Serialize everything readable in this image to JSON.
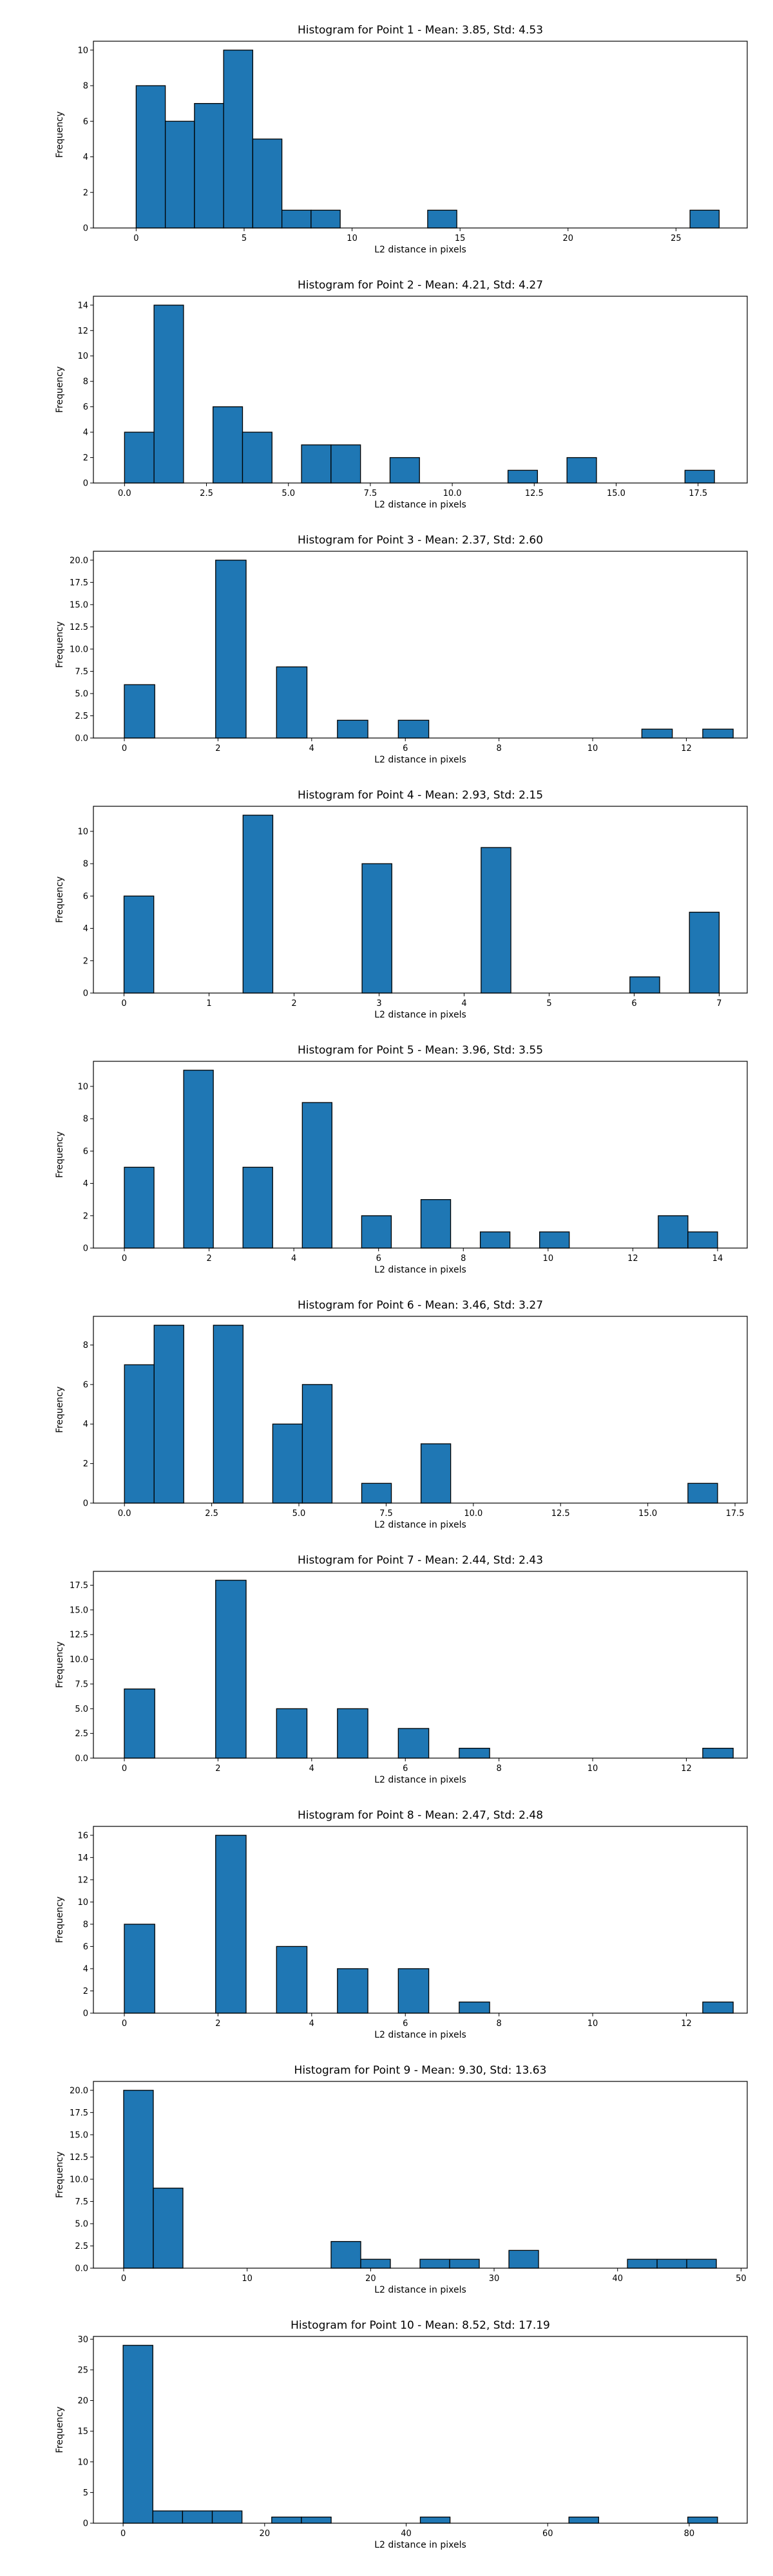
{
  "chart_data": [
    {
      "type": "histogram",
      "title": "Histogram for Point 1 - Mean: 3.85, Std: 4.53",
      "xlabel": "L2 distance in pixels",
      "ylabel": "Frequency",
      "xlim": [
        -1.98,
        28.3
      ],
      "ylim": [
        0,
        10.5
      ],
      "xticks": [
        0,
        5,
        10,
        15,
        20,
        25
      ],
      "xtick_labels": [
        "0",
        "5",
        "10",
        "15",
        "20",
        "25"
      ],
      "yticks": [
        0,
        2,
        4,
        6,
        8,
        10
      ],
      "ytick_labels": [
        "0",
        "2",
        "4",
        "6",
        "8",
        "10"
      ],
      "bin_edges": [
        0,
        1.35,
        2.7,
        4.05,
        5.4,
        6.75,
        8.1,
        9.45,
        10.8,
        12.15,
        13.5,
        14.85,
        16.2,
        17.55,
        18.9,
        20.25,
        21.6,
        22.95,
        24.3,
        25.65,
        27.0
      ],
      "counts": [
        8,
        6,
        7,
        10,
        5,
        1,
        1,
        0,
        0,
        0,
        1,
        0,
        0,
        0,
        0,
        0,
        0,
        0,
        0,
        1
      ]
    },
    {
      "type": "histogram",
      "title": "Histogram for Point 2 - Mean: 4.21, Std: 4.27",
      "xlabel": "L2 distance in pixels",
      "ylabel": "Frequency",
      "xlim": [
        -0.95,
        19.0
      ],
      "ylim": [
        0,
        14.7
      ],
      "xticks": [
        0,
        2.5,
        5,
        7.5,
        10,
        12.5,
        15,
        17.5
      ],
      "xtick_labels": [
        "0.0",
        "2.5",
        "5.0",
        "7.5",
        "10.0",
        "12.5",
        "15.0",
        "17.5"
      ],
      "yticks": [
        0,
        2,
        4,
        6,
        8,
        10,
        12,
        14
      ],
      "ytick_labels": [
        "0",
        "2",
        "4",
        "6",
        "8",
        "10",
        "12",
        "14"
      ],
      "bin_edges": [
        0,
        0.9,
        1.8,
        2.7,
        3.6,
        4.5,
        5.4,
        6.3,
        7.2,
        8.1,
        9.0,
        9.9,
        10.8,
        11.7,
        12.6,
        13.5,
        14.4,
        15.3,
        16.2,
        17.1,
        18.0
      ],
      "counts": [
        4,
        14,
        0,
        6,
        4,
        0,
        3,
        3,
        0,
        2,
        0,
        0,
        0,
        1,
        0,
        2,
        0,
        0,
        0,
        1
      ]
    },
    {
      "type": "histogram",
      "title": "Histogram for Point 3 - Mean: 2.37, Std: 2.60",
      "xlabel": "L2 distance in pixels",
      "ylabel": "Frequency",
      "xlim": [
        -0.66,
        13.3
      ],
      "ylim": [
        0,
        21.0
      ],
      "xticks": [
        0,
        2,
        4,
        6,
        8,
        10,
        12
      ],
      "xtick_labels": [
        "0",
        "2",
        "4",
        "6",
        "8",
        "10",
        "12"
      ],
      "yticks": [
        0,
        2.5,
        5,
        7.5,
        10,
        12.5,
        15,
        17.5,
        20
      ],
      "ytick_labels": [
        "0.0",
        "2.5",
        "5.0",
        "7.5",
        "10.0",
        "12.5",
        "15.0",
        "17.5",
        "20.0"
      ],
      "bin_edges": [
        0,
        0.65,
        1.3,
        1.95,
        2.6,
        3.25,
        3.9,
        4.55,
        5.2,
        5.85,
        6.5,
        7.15,
        7.8,
        8.45,
        9.1,
        9.75,
        10.4,
        11.05,
        11.7,
        12.35,
        13.0
      ],
      "counts": [
        6,
        0,
        0,
        20,
        0,
        8,
        0,
        2,
        0,
        2,
        0,
        0,
        0,
        0,
        0,
        0,
        0,
        1,
        0,
        1
      ]
    },
    {
      "type": "histogram",
      "title": "Histogram for Point 4 - Mean: 2.93, Std: 2.15",
      "xlabel": "L2 distance in pixels",
      "ylabel": "Frequency",
      "xlim": [
        -0.36,
        7.33
      ],
      "ylim": [
        0,
        11.55
      ],
      "xticks": [
        0,
        1,
        2,
        3,
        4,
        5,
        6,
        7
      ],
      "xtick_labels": [
        "0",
        "1",
        "2",
        "3",
        "4",
        "5",
        "6",
        "7"
      ],
      "yticks": [
        0,
        2,
        4,
        6,
        8,
        10
      ],
      "ytick_labels": [
        "0",
        "2",
        "4",
        "6",
        "8",
        "10"
      ],
      "bin_edges": [
        0,
        0.35,
        0.7,
        1.05,
        1.4,
        1.75,
        2.1,
        2.45,
        2.8,
        3.15,
        3.5,
        3.85,
        4.2,
        4.55,
        4.9,
        5.25,
        5.6,
        5.95,
        6.3,
        6.65,
        7.0
      ],
      "counts": [
        6,
        0,
        0,
        0,
        11,
        0,
        0,
        0,
        8,
        0,
        0,
        0,
        9,
        0,
        0,
        0,
        0,
        1,
        0,
        5
      ]
    },
    {
      "type": "histogram",
      "title": "Histogram for Point 5 - Mean: 3.96, Std: 3.55",
      "xlabel": "L2 distance in pixels",
      "ylabel": "Frequency",
      "xlim": [
        -0.73,
        14.7
      ],
      "ylim": [
        0,
        11.55
      ],
      "xticks": [
        0,
        2,
        4,
        6,
        8,
        10,
        12,
        14
      ],
      "xtick_labels": [
        "0",
        "2",
        "4",
        "6",
        "8",
        "10",
        "12",
        "14"
      ],
      "yticks": [
        0,
        2,
        4,
        6,
        8,
        10
      ],
      "ytick_labels": [
        "0",
        "2",
        "4",
        "6",
        "8",
        "10"
      ],
      "bin_edges": [
        0,
        0.7,
        1.4,
        2.1,
        2.8,
        3.5,
        4.2,
        4.9,
        5.6,
        6.3,
        7.0,
        7.7,
        8.4,
        9.1,
        9.8,
        10.5,
        11.2,
        11.9,
        12.6,
        13.3,
        14.0
      ],
      "counts": [
        5,
        0,
        11,
        0,
        5,
        0,
        9,
        0,
        2,
        0,
        3,
        0,
        1,
        0,
        1,
        0,
        0,
        0,
        2,
        1
      ]
    },
    {
      "type": "histogram",
      "title": "Histogram for Point 6 - Mean: 3.46, Std: 3.27",
      "xlabel": "L2 distance in pixels",
      "ylabel": "Frequency",
      "xlim": [
        -0.89,
        17.85
      ],
      "ylim": [
        0,
        9.45
      ],
      "xticks": [
        0,
        2.5,
        5,
        7.5,
        10,
        12.5,
        15,
        17.5
      ],
      "xtick_labels": [
        "0.0",
        "2.5",
        "5.0",
        "7.5",
        "10.0",
        "12.5",
        "15.0",
        "17.5"
      ],
      "yticks": [
        0,
        2,
        4,
        6,
        8
      ],
      "ytick_labels": [
        "0",
        "2",
        "4",
        "6",
        "8"
      ],
      "bin_edges": [
        0,
        0.85,
        1.7,
        2.55,
        3.4,
        4.25,
        5.1,
        5.95,
        6.8,
        7.65,
        8.5,
        9.35,
        10.2,
        11.05,
        11.9,
        12.75,
        13.6,
        14.45,
        15.3,
        16.15,
        17.0
      ],
      "counts": [
        7,
        9,
        0,
        9,
        0,
        4,
        6,
        0,
        1,
        0,
        3,
        0,
        0,
        0,
        0,
        0,
        0,
        0,
        0,
        1
      ]
    },
    {
      "type": "histogram",
      "title": "Histogram for Point 7 - Mean: 2.44, Std: 2.43",
      "xlabel": "L2 distance in pixels",
      "ylabel": "Frequency",
      "xlim": [
        -0.66,
        13.3
      ],
      "ylim": [
        0,
        18.9
      ],
      "xticks": [
        0,
        2,
        4,
        6,
        8,
        10,
        12
      ],
      "xtick_labels": [
        "0",
        "2",
        "4",
        "6",
        "8",
        "10",
        "12"
      ],
      "yticks": [
        0,
        2.5,
        5,
        7.5,
        10,
        12.5,
        15,
        17.5
      ],
      "ytick_labels": [
        "0.0",
        "2.5",
        "5.0",
        "7.5",
        "10.0",
        "12.5",
        "15.0",
        "17.5"
      ],
      "bin_edges": [
        0,
        0.65,
        1.3,
        1.95,
        2.6,
        3.25,
        3.9,
        4.55,
        5.2,
        5.85,
        6.5,
        7.15,
        7.8,
        8.45,
        9.1,
        9.75,
        10.4,
        11.05,
        11.7,
        12.35,
        13.0
      ],
      "counts": [
        7,
        0,
        0,
        18,
        0,
        5,
        0,
        5,
        0,
        3,
        0,
        1,
        0,
        0,
        0,
        0,
        0,
        0,
        0,
        1
      ]
    },
    {
      "type": "histogram",
      "title": "Histogram for Point 8 - Mean: 2.47, Std: 2.48",
      "xlabel": "L2 distance in pixels",
      "ylabel": "Frequency",
      "xlim": [
        -0.66,
        13.3
      ],
      "ylim": [
        0,
        16.8
      ],
      "xticks": [
        0,
        2,
        4,
        6,
        8,
        10,
        12
      ],
      "xtick_labels": [
        "0",
        "2",
        "4",
        "6",
        "8",
        "10",
        "12"
      ],
      "yticks": [
        0,
        2,
        4,
        6,
        8,
        10,
        12,
        14,
        16
      ],
      "ytick_labels": [
        "0",
        "2",
        "4",
        "6",
        "8",
        "10",
        "12",
        "14",
        "16"
      ],
      "bin_edges": [
        0,
        0.65,
        1.3,
        1.95,
        2.6,
        3.25,
        3.9,
        4.55,
        5.2,
        5.85,
        6.5,
        7.15,
        7.8,
        8.45,
        9.1,
        9.75,
        10.4,
        11.05,
        11.7,
        12.35,
        13.0
      ],
      "counts": [
        8,
        0,
        0,
        16,
        0,
        6,
        0,
        4,
        0,
        4,
        0,
        1,
        0,
        0,
        0,
        0,
        0,
        0,
        0,
        1
      ]
    },
    {
      "type": "histogram",
      "title": "Histogram for Point 9 - Mean: 9.30, Std: 13.63",
      "xlabel": "L2 distance in pixels",
      "ylabel": "Frequency",
      "xlim": [
        -2.45,
        50.5
      ],
      "ylim": [
        0,
        21.0
      ],
      "xticks": [
        0,
        10,
        20,
        30,
        40,
        50
      ],
      "xtick_labels": [
        "0",
        "10",
        "20",
        "30",
        "40",
        "50"
      ],
      "yticks": [
        0,
        2.5,
        5,
        7.5,
        10,
        12.5,
        15,
        17.5,
        20
      ],
      "ytick_labels": [
        "0.0",
        "2.5",
        "5.0",
        "7.5",
        "10.0",
        "12.5",
        "15.0",
        "17.5",
        "20.0"
      ],
      "bin_edges": [
        0,
        2.4,
        4.8,
        7.2,
        9.6,
        12.0,
        14.4,
        16.8,
        19.2,
        21.6,
        24.0,
        26.4,
        28.8,
        31.2,
        33.6,
        36.0,
        38.4,
        40.8,
        43.2,
        45.6,
        48.0
      ],
      "counts": [
        20,
        9,
        0,
        0,
        0,
        0,
        0,
        3,
        1,
        0,
        1,
        1,
        0,
        2,
        0,
        0,
        0,
        1,
        1,
        1
      ]
    },
    {
      "type": "histogram",
      "title": "Histogram for Point 10 - Mean: 8.52, Std: 17.19",
      "xlabel": "L2 distance in pixels",
      "ylabel": "Frequency",
      "xlim": [
        -4.2,
        88.2
      ],
      "ylim": [
        0,
        30.45
      ],
      "xticks": [
        0,
        20,
        40,
        60,
        80
      ],
      "xtick_labels": [
        "0",
        "20",
        "40",
        "60",
        "80"
      ],
      "yticks": [
        0,
        5,
        10,
        15,
        20,
        25,
        30
      ],
      "ytick_labels": [
        "0",
        "5",
        "10",
        "15",
        "20",
        "25",
        "30"
      ],
      "bin_edges": [
        0,
        4.2,
        8.4,
        12.6,
        16.8,
        21.0,
        25.2,
        29.4,
        33.6,
        37.8,
        42.0,
        46.2,
        50.4,
        54.6,
        58.8,
        63.0,
        67.2,
        71.4,
        75.6,
        79.8,
        84.0
      ],
      "counts": [
        29,
        2,
        2,
        2,
        0,
        1,
        1,
        0,
        0,
        0,
        1,
        0,
        0,
        0,
        0,
        1,
        0,
        0,
        0,
        1
      ]
    }
  ],
  "colors": {
    "bar_fill": "#1f77b4",
    "bar_edge": "#000000",
    "axes": "#000000"
  }
}
